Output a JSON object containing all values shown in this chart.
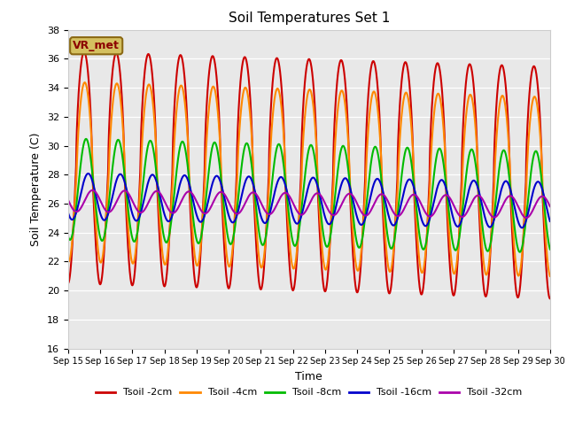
{
  "title": "Soil Temperatures Set 1",
  "xlabel": "Time",
  "ylabel": "Soil Temperature (C)",
  "ylim": [
    16,
    38
  ],
  "xlim": [
    0,
    15
  ],
  "x_tick_labels": [
    "Sep 15",
    "Sep 16",
    "Sep 17",
    "Sep 18",
    "Sep 19",
    "Sep 20",
    "Sep 21",
    "Sep 22",
    "Sep 23",
    "Sep 24",
    "Sep 25",
    "Sep 26",
    "Sep 27",
    "Sep 28",
    "Sep 29",
    "Sep 30"
  ],
  "background_color": "#e8e8e8",
  "figure_color": "#ffffff",
  "annotation_text": "VR_met",
  "annotation_color": "#8B0000",
  "annotation_bg": "#d4c060",
  "series": {
    "Tsoil -2cm": {
      "color": "#cc0000",
      "amp": 8.0,
      "mean": 28.5,
      "phase": 0.0,
      "amp_mod": 0.0
    },
    "Tsoil -4cm": {
      "color": "#ff8800",
      "amp": 6.0,
      "mean": 28.0,
      "phase": 0.12,
      "amp_mod": 0.0
    },
    "Tsoil -8cm": {
      "color": "#00bb00",
      "amp": 3.5,
      "mean": 27.0,
      "phase": 0.35,
      "amp_mod": 0.0
    },
    "Tsoil -16cm": {
      "color": "#0000cc",
      "amp": 1.5,
      "mean": 26.3,
      "phase": 0.75,
      "amp_mod": 0.0
    },
    "Tsoil -32cm": {
      "color": "#aa00aa",
      "amp": 0.7,
      "mean": 26.0,
      "phase": 1.6,
      "amp_mod": 0.0
    }
  },
  "legend_order": [
    "Tsoil -2cm",
    "Tsoil -4cm",
    "Tsoil -8cm",
    "Tsoil -16cm",
    "Tsoil -32cm"
  ],
  "n_points": 3000,
  "days": 15
}
